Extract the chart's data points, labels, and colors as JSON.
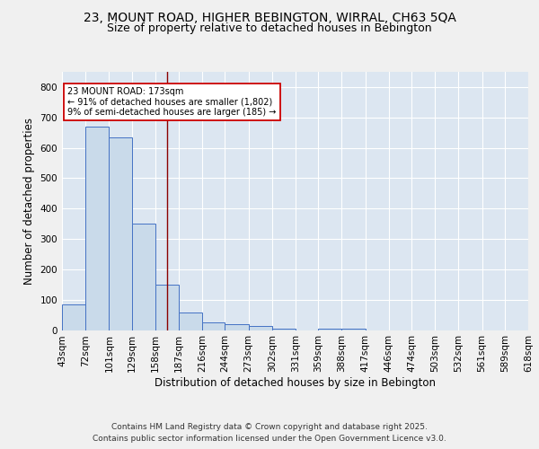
{
  "title_line1": "23, MOUNT ROAD, HIGHER BEBINGTON, WIRRAL, CH63 5QA",
  "title_line2": "Size of property relative to detached houses in Bebington",
  "xlabel": "Distribution of detached houses by size in Bebington",
  "ylabel": "Number of detached properties",
  "bar_color": "#c9daea",
  "bar_edge_color": "#4472c4",
  "background_color": "#dce6f1",
  "grid_color": "#ffffff",
  "vline_value": 173,
  "vline_color": "#8b0000",
  "annotation_text": "23 MOUNT ROAD: 173sqm\n← 91% of detached houses are smaller (1,802)\n9% of semi-detached houses are larger (185) →",
  "annotation_box_color": "#ffffff",
  "annotation_edge_color": "#cc0000",
  "bins": [
    43,
    72,
    101,
    129,
    158,
    187,
    216,
    244,
    273,
    302,
    331,
    359,
    388,
    417,
    446,
    474,
    503,
    532,
    561,
    589,
    618
  ],
  "bin_labels": [
    "43sqm",
    "72sqm",
    "101sqm",
    "129sqm",
    "158sqm",
    "187sqm",
    "216sqm",
    "244sqm",
    "273sqm",
    "302sqm",
    "331sqm",
    "359sqm",
    "388sqm",
    "417sqm",
    "446sqm",
    "474sqm",
    "503sqm",
    "532sqm",
    "561sqm",
    "589sqm",
    "618sqm"
  ],
  "counts": [
    85,
    670,
    635,
    350,
    148,
    58,
    25,
    18,
    12,
    5,
    0,
    4,
    4,
    0,
    0,
    0,
    0,
    0,
    0,
    0
  ],
  "ylim": [
    0,
    850
  ],
  "yticks": [
    0,
    100,
    200,
    300,
    400,
    500,
    600,
    700,
    800
  ],
  "footer_line1": "Contains HM Land Registry data © Crown copyright and database right 2025.",
  "footer_line2": "Contains public sector information licensed under the Open Government Licence v3.0.",
  "title_fontsize": 10,
  "subtitle_fontsize": 9,
  "axis_label_fontsize": 8.5,
  "tick_fontsize": 7.5,
  "footer_fontsize": 6.5,
  "fig_bg": "#f0f0f0"
}
